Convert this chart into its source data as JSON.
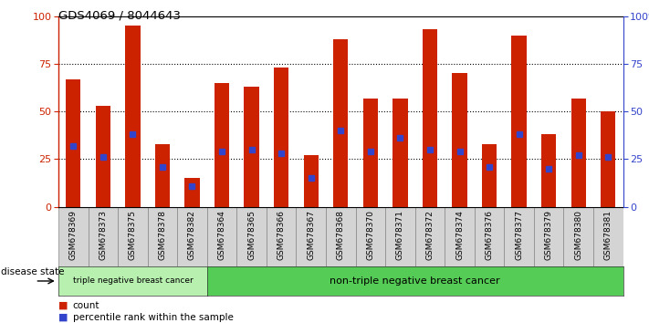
{
  "title": "GDS4069 / 8044643",
  "samples": [
    "GSM678369",
    "GSM678373",
    "GSM678375",
    "GSM678378",
    "GSM678382",
    "GSM678364",
    "GSM678365",
    "GSM678366",
    "GSM678367",
    "GSM678368",
    "GSM678370",
    "GSM678371",
    "GSM678372",
    "GSM678374",
    "GSM678376",
    "GSM678377",
    "GSM678379",
    "GSM678380",
    "GSM678381"
  ],
  "counts": [
    67,
    53,
    95,
    33,
    15,
    65,
    63,
    73,
    27,
    88,
    57,
    57,
    93,
    70,
    33,
    90,
    38,
    57,
    50
  ],
  "percentiles": [
    32,
    26,
    38,
    21,
    11,
    29,
    30,
    28,
    15,
    40,
    29,
    36,
    30,
    29,
    21,
    38,
    20,
    27,
    26
  ],
  "group1_count": 5,
  "group1_label": "triple negative breast cancer",
  "group2_label": "non-triple negative breast cancer",
  "bar_color": "#cc2200",
  "marker_color": "#3344cc",
  "left_axis_color": "#cc2200",
  "right_axis_color": "#3344cc",
  "ylim": [
    0,
    100
  ],
  "yticks": [
    0,
    25,
    50,
    75,
    100
  ],
  "legend_count_label": "count",
  "legend_pct_label": "percentile rank within the sample",
  "group1_bg": "#b8f0b0",
  "group2_bg": "#55cc55",
  "xtick_bg": "#d4d4d4"
}
